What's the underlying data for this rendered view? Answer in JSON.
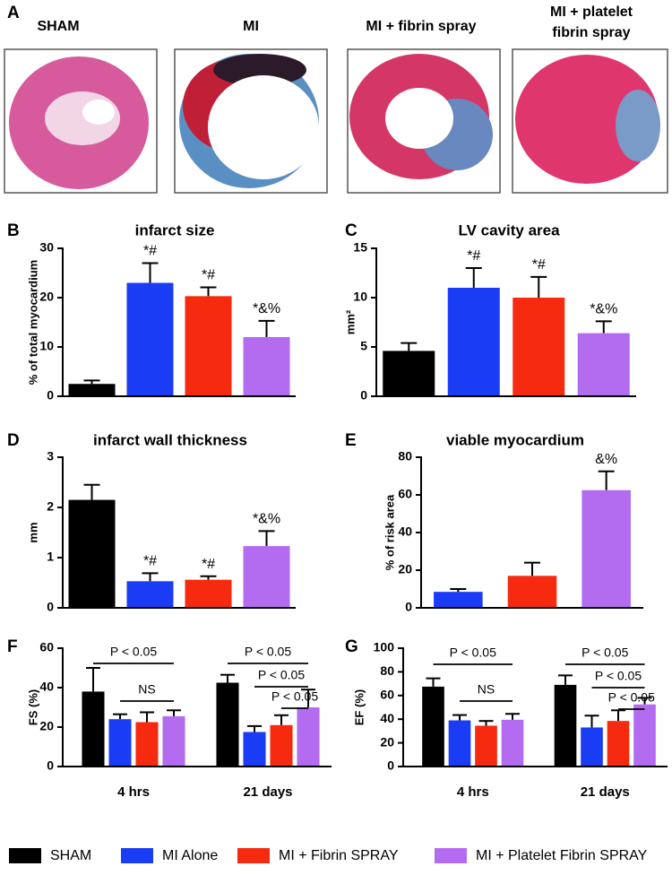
{
  "panel_a": {
    "label": "A",
    "images": [
      {
        "caption": "SHAM"
      },
      {
        "caption": "MI"
      },
      {
        "caption": "MI +  fibrin spray"
      },
      {
        "caption": [
          "MI +  platelet",
          "fibrin spray"
        ]
      }
    ]
  },
  "chart_data": [
    {
      "panel": "B",
      "type": "bar",
      "title": "infarct size",
      "y_label": "% of total myocardium",
      "colors": [
        "#000000",
        "#1a3cf5",
        "#f52a0f",
        "#b36bf0"
      ],
      "values": [
        2.5,
        23,
        20.3,
        12
      ],
      "errors": [
        0.7,
        4,
        1.8,
        3.3
      ],
      "annotations": [
        null,
        "*#",
        "*#",
        "*&%"
      ],
      "ylim": [
        0,
        30
      ],
      "yticks": [
        0,
        10,
        20,
        30
      ]
    },
    {
      "panel": "C",
      "type": "bar",
      "title": "LV cavity area",
      "y_label": "mm²",
      "colors": [
        "#000000",
        "#1a3cf5",
        "#f52a0f",
        "#b36bf0"
      ],
      "values": [
        4.6,
        11,
        10,
        6.4
      ],
      "errors": [
        0.8,
        2,
        2.1,
        1.2
      ],
      "annotations": [
        null,
        "*#",
        "*#",
        "*&%"
      ],
      "ylim": [
        0,
        15
      ],
      "yticks": [
        0,
        5,
        10,
        15
      ]
    },
    {
      "panel": "D",
      "type": "bar",
      "title": "infarct wall thickness",
      "y_label": "mm",
      "colors": [
        "#000000",
        "#1a3cf5",
        "#f52a0f",
        "#b36bf0"
      ],
      "values": [
        2.15,
        0.53,
        0.56,
        1.23
      ],
      "errors": [
        0.3,
        0.16,
        0.07,
        0.3
      ],
      "annotations": [
        null,
        "*#",
        "*#",
        "*&%"
      ],
      "ylim": [
        0,
        3
      ],
      "yticks": [
        0,
        1,
        2,
        3
      ]
    },
    {
      "panel": "E",
      "type": "bar",
      "title": "viable myocardium",
      "y_label": "% of risk area",
      "colors": [
        "#1a3cf5",
        "#f52a0f",
        "#b36bf0"
      ],
      "values": [
        8.5,
        17,
        62.5
      ],
      "errors": [
        1.5,
        7,
        10
      ],
      "annotations": [
        null,
        null,
        "&%"
      ],
      "ylim": [
        0,
        80
      ],
      "yticks": [
        0,
        20,
        40,
        60,
        80
      ]
    },
    {
      "panel": "F",
      "type": "grouped_bar",
      "y_label": "FS (%)",
      "categories": [
        "4 hrs",
        "21 days"
      ],
      "series": [
        {
          "color": "#000000",
          "values": [
            38,
            42.5
          ],
          "errors": [
            12,
            4
          ]
        },
        {
          "color": "#1a3cf5",
          "values": [
            24,
            17.5
          ],
          "errors": [
            2.5,
            3
          ]
        },
        {
          "color": "#f52a0f",
          "values": [
            22.5,
            21
          ],
          "errors": [
            5,
            5
          ]
        },
        {
          "color": "#b36bf0",
          "values": [
            25.5,
            30
          ],
          "errors": [
            3,
            9
          ]
        }
      ],
      "brackets": [
        {
          "category": 0,
          "from": 0,
          "to": 3,
          "label": "P < 0.05"
        },
        {
          "category": 0,
          "from": 1,
          "to": 3,
          "label": "NS"
        },
        {
          "category": 1,
          "from": 0,
          "to": 3,
          "label": "P < 0.05"
        },
        {
          "category": 1,
          "from": 1,
          "to": 3,
          "label": "P < 0.05"
        },
        {
          "category": 1,
          "from": 2,
          "to": 3,
          "label": "P < 0.05"
        }
      ],
      "ylim": [
        0,
        60
      ],
      "yticks": [
        0,
        20,
        40,
        60
      ]
    },
    {
      "panel": "G",
      "type": "grouped_bar",
      "y_label": "EF (%)",
      "categories": [
        "4 hrs",
        "21 days"
      ],
      "series": [
        {
          "color": "#000000",
          "values": [
            67.5,
            69
          ],
          "errors": [
            7,
            8
          ]
        },
        {
          "color": "#1a3cf5",
          "values": [
            39,
            33
          ],
          "errors": [
            4.5,
            10
          ]
        },
        {
          "color": "#f52a0f",
          "values": [
            34.5,
            38.5
          ],
          "errors": [
            4,
            9
          ]
        },
        {
          "color": "#b36bf0",
          "values": [
            39.5,
            52.5
          ],
          "errors": [
            5,
            5.5
          ]
        }
      ],
      "brackets": [
        {
          "category": 0,
          "from": 0,
          "to": 3,
          "label": "P < 0.05"
        },
        {
          "category": 0,
          "from": 1,
          "to": 3,
          "label": "NS"
        },
        {
          "category": 1,
          "from": 0,
          "to": 3,
          "label": "P < 0.05"
        },
        {
          "category": 1,
          "from": 1,
          "to": 3,
          "label": "P < 0.05"
        },
        {
          "category": 1,
          "from": 2,
          "to": 3,
          "label": "P < 0.05"
        }
      ],
      "ylim": [
        0,
        100
      ],
      "yticks": [
        0,
        20,
        40,
        60,
        80,
        100
      ]
    }
  ],
  "legend": [
    {
      "name": "SHAM",
      "color": "#000000"
    },
    {
      "name": "MI Alone",
      "color": "#1a3cf5"
    },
    {
      "name": "MI + Fibrin SPRAY",
      "color": "#f52a0f"
    },
    {
      "name": "MI + Platelet Fibrin SPRAY",
      "color": "#b36bf0"
    }
  ]
}
